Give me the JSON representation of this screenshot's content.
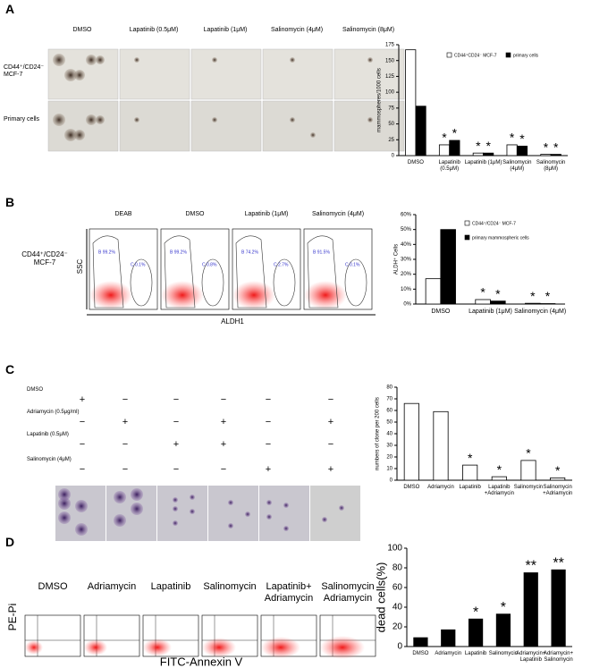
{
  "figure": {
    "panel_labels": [
      "A",
      "B",
      "C",
      "D"
    ],
    "a": {
      "columns": [
        "DMSO",
        "Lapatinib (0.5μM)",
        "Lapatinib (1μM)",
        "Salinomycin (4μM)",
        "Salinomycin (8μM)"
      ],
      "rows": [
        "CD44⁺/CD24⁻ MCF-7",
        "Primary cells"
      ]
    },
    "b": {
      "row_label": "CD44⁺/CD24⁻ MCF-7",
      "y_label": "SSC",
      "x_label": "ALDH1",
      "plots": [
        {
          "title": "DEAB",
          "gates": [
            "B 99.2%",
            "C 0.1%"
          ]
        },
        {
          "title": "DMSO",
          "gates": [
            "B 99.2%",
            "C 0.8%"
          ]
        },
        {
          "title": "Lapatinib (1μM)",
          "gates": [
            "B 74.2%",
            "C 2.7%"
          ]
        },
        {
          "title": "Salinomycin (4μM)",
          "gates": [
            "B 91.5%",
            "C 0.1%"
          ]
        }
      ]
    },
    "c": {
      "rows": [
        {
          "label": "DMSO",
          "marks": [
            "+",
            "−",
            "−",
            "−",
            "−",
            "−"
          ]
        },
        {
          "label": "Adriamycin (0.5μg/ml)",
          "marks": [
            "−",
            "+",
            "−",
            "+",
            "−",
            "+"
          ]
        },
        {
          "label": "Lapatinib (0.5μM)",
          "marks": [
            "−",
            "−",
            "+",
            "+",
            "−",
            "−"
          ]
        },
        {
          "label": "Salinomycin (4μM)",
          "marks": [
            "−",
            "−",
            "−",
            "−",
            "+",
            "+"
          ]
        }
      ]
    },
    "d": {
      "plots": [
        "DMSO",
        "Adriamycin",
        "Lapatinib",
        "Salinomycin",
        "Lapatinib+ Adriamycin",
        "Salinomycin Adriamycin"
      ],
      "y_label": "PE-Pi",
      "x_label": "FITC-Annexin V"
    }
  },
  "chart_data": [
    {
      "type": "bar",
      "y_label": "mammospheres/1000 cells",
      "categories": [
        "DMSO",
        "Lapatinib (0.5μM)",
        "Lapatinib (1μM)",
        "Salinomycin (4μM)",
        "Salinomycin (8μM)"
      ],
      "series": [
        {
          "name": "CD44⁺CD24⁻ MCF-7",
          "color": "#ffffff",
          "values": [
            167,
            17,
            4,
            17,
            2
          ],
          "stars": [
            null,
            "*",
            "*",
            "*",
            "*"
          ]
        },
        {
          "name": "primary cells",
          "color": "#000000",
          "values": [
            78,
            24,
            4,
            15,
            2
          ],
          "stars": [
            null,
            "*",
            "*",
            "*",
            "*"
          ]
        }
      ],
      "ylim": [
        0,
        175
      ],
      "yticks": [
        0,
        25,
        50,
        75,
        100,
        125,
        150,
        175
      ]
    },
    {
      "type": "bar",
      "y_label": "ALDH⁺ Cells",
      "categories": [
        "DMSO",
        "Lapatinib (1μM)",
        "Salinomycin (4μM)"
      ],
      "series": [
        {
          "name": "CD44⁺/CD24⁻ MCF-7",
          "color": "#ffffff",
          "values": [
            17,
            3,
            0.5
          ],
          "stars": [
            null,
            "*",
            "*"
          ]
        },
        {
          "name": "primary mammospheric cells",
          "color": "#000000",
          "values": [
            50,
            2,
            0.3
          ],
          "stars": [
            null,
            "*",
            "*"
          ]
        }
      ],
      "ylim": [
        0,
        60
      ],
      "yticks": [
        {
          "value": 0,
          "label": "0%"
        },
        {
          "value": 10,
          "label": "10%"
        },
        {
          "value": 20,
          "label": "20%"
        },
        {
          "value": 30,
          "label": "30%"
        },
        {
          "value": 40,
          "label": "40%"
        },
        {
          "value": 50,
          "label": "50%"
        },
        {
          "value": 60,
          "label": "60%"
        }
      ]
    },
    {
      "type": "bar",
      "y_label": "numbers of clone per 200 cells",
      "categories": [
        "DMSO",
        "Adriamycin",
        "Lapatinib",
        "Lapatinib +Adriamycin",
        "Salinomycin",
        "Salinomycin +Adriamycin"
      ],
      "series": [
        {
          "color": "#ffffff",
          "values": [
            66,
            59,
            13,
            3,
            17,
            2
          ],
          "stars": [
            null,
            null,
            "*",
            "*",
            "*",
            "*"
          ]
        }
      ],
      "ylim": [
        0,
        80
      ],
      "yticks": [
        0,
        10,
        20,
        30,
        40,
        50,
        60,
        70,
        80
      ]
    },
    {
      "type": "bar",
      "y_label": "dead cells(%)",
      "categories": [
        "DMSO",
        "Adriamycin",
        "Lapatinib",
        "Salinomycin",
        "Adriamycin+ Lapatinib",
        "Adriamycin+ Salinomycin"
      ],
      "series": [
        {
          "color": "#000000",
          "values": [
            9,
            17,
            28,
            33,
            75,
            78
          ],
          "stars": [
            null,
            null,
            "*",
            "*",
            "**",
            "**"
          ]
        }
      ],
      "ylim": [
        0,
        100
      ],
      "yticks": [
        0,
        20,
        40,
        60,
        80,
        100
      ]
    }
  ]
}
